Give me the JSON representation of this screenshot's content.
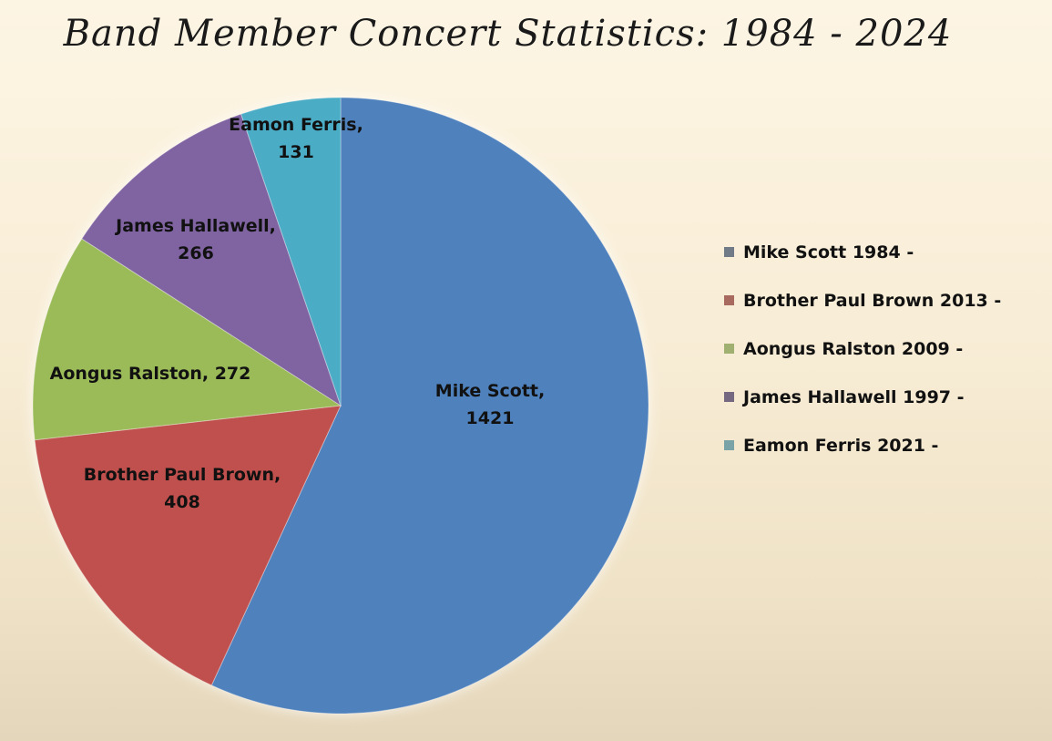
{
  "chart_data": {
    "type": "pie",
    "title": "Band Member Concert Statistics: 1984 - 2024",
    "slices": [
      {
        "label": "Mike Scott",
        "value": 1421,
        "legend": "Mike Scott 1984 -",
        "color": "#4f81bd",
        "legend_color": "#717b88"
      },
      {
        "label": "Brother Paul Brown",
        "value": 408,
        "legend": "Brother Paul Brown 2013 -",
        "color": "#c0504d",
        "legend_color": "#a86a5f"
      },
      {
        "label": "Aongus Ralston",
        "value": 272,
        "legend": "Aongus Ralston 2009 -",
        "color": "#9bbb59",
        "legend_color": "#a0b070"
      },
      {
        "label": "James Hallawell",
        "value": 266,
        "legend": "James Hallawell 1997 -",
        "color": "#8064a2",
        "legend_color": "#746980"
      },
      {
        "label": "Eamon Ferris",
        "value": 131,
        "legend": "Eamon Ferris 2021 -",
        "color": "#4bacc6",
        "legend_color": "#7aa3a8"
      }
    ],
    "start_angle_deg": 0,
    "direction": "clockwise",
    "legend_position": "right"
  }
}
